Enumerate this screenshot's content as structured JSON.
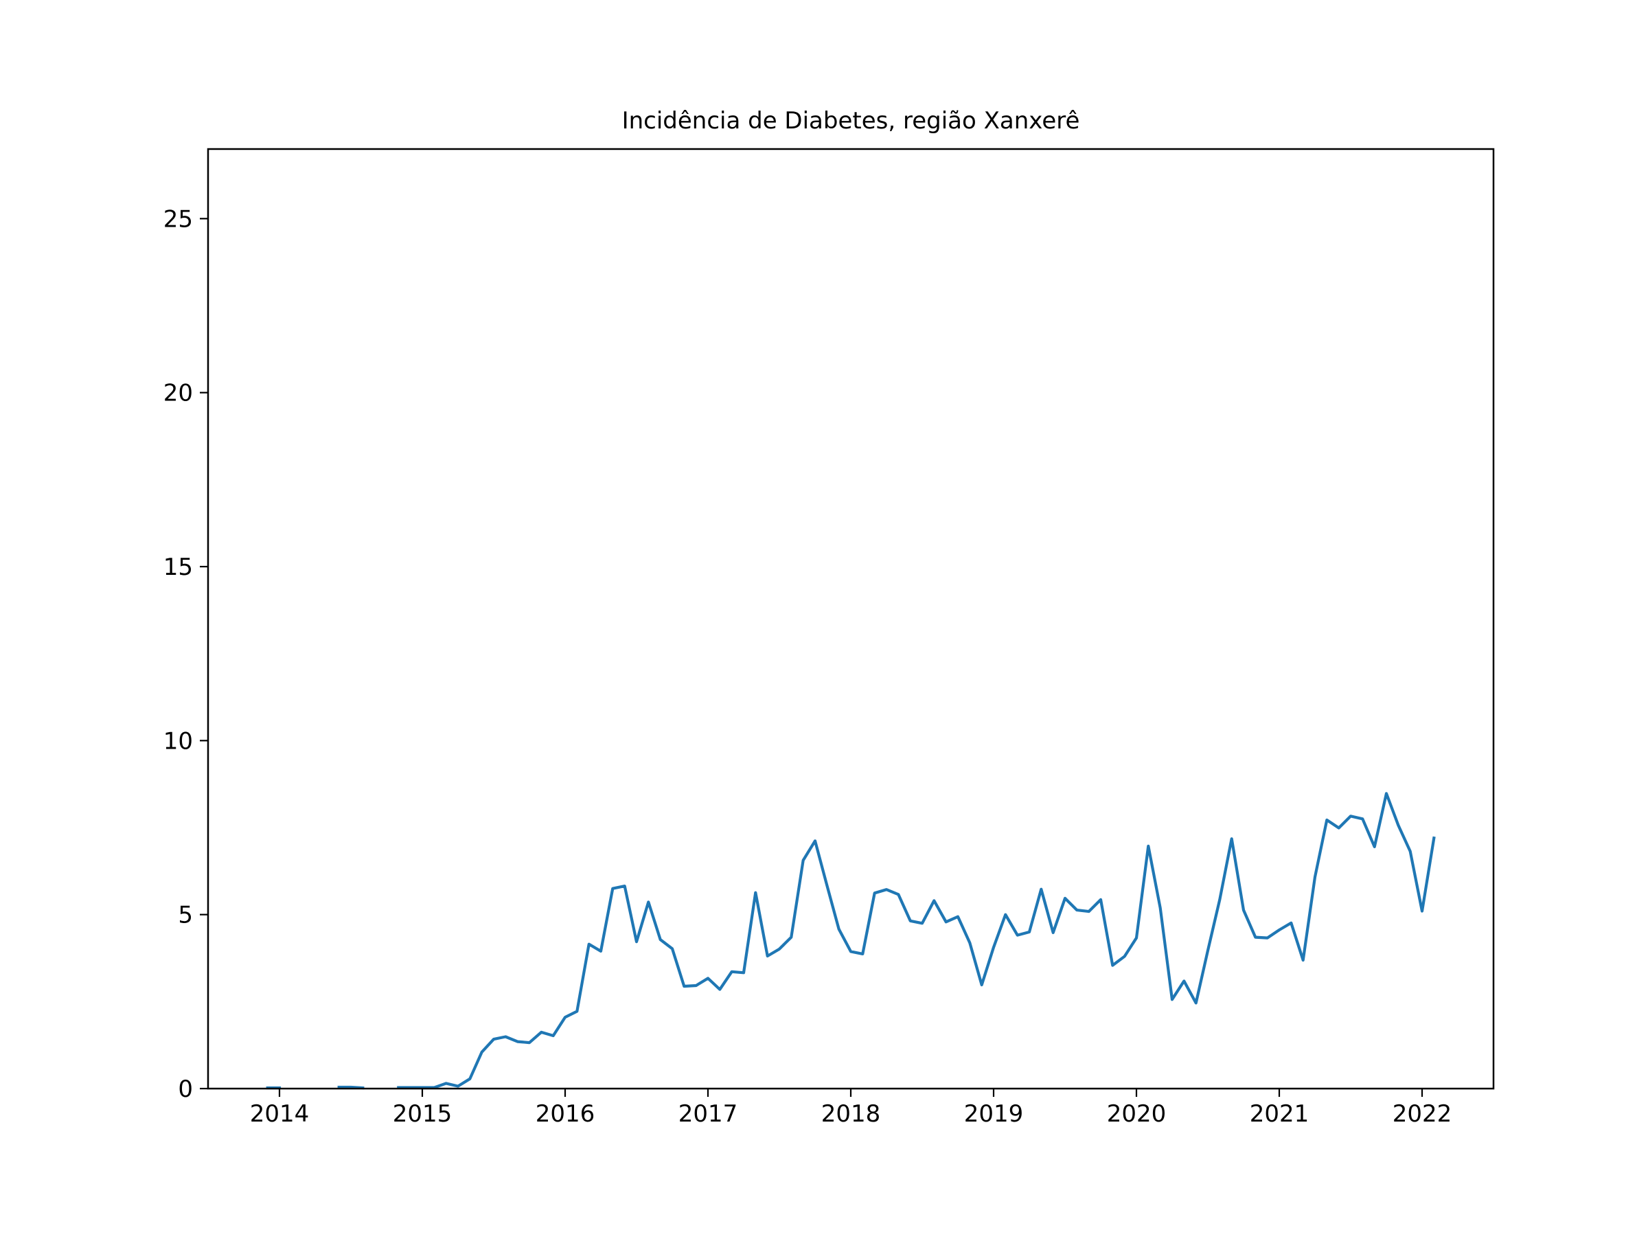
{
  "chart_data": {
    "type": "line",
    "title": "Incidência de Diabetes, região Xanxerê",
    "xlabel": "",
    "ylabel": "",
    "xlim": [
      2013.5,
      2022.5
    ],
    "ylim": [
      0,
      27
    ],
    "grid": false,
    "xticks": [
      2014,
      2015,
      2016,
      2017,
      2018,
      2019,
      2020,
      2021,
      2022
    ],
    "xtick_labels": [
      "2014",
      "2015",
      "2016",
      "2017",
      "2018",
      "2019",
      "2020",
      "2021",
      "2022"
    ],
    "yticks": [
      0,
      5,
      10,
      15,
      20,
      25
    ],
    "ytick_labels": [
      "0",
      "5",
      "10",
      "15",
      "20",
      "25"
    ],
    "series": [
      {
        "name": "Incidência",
        "color": "#1f77b4",
        "segments": [
          {
            "start": "2013-12",
            "values": [
              0.02,
              0.02
            ]
          },
          {
            "start": "2014-06",
            "values": [
              0.04,
              0.04,
              0.02
            ]
          },
          {
            "start": "2014-11",
            "values": [
              0.03,
              0.03,
              0.03,
              0.03,
              0.15,
              0.07,
              0.28,
              1.05,
              1.42,
              1.49,
              1.35,
              1.32,
              1.62,
              1.52,
              2.05,
              2.22,
              4.15,
              3.95,
              5.75,
              5.82,
              4.22,
              5.36,
              4.28,
              4.02,
              2.94,
              2.96,
              3.17,
              2.85,
              3.36,
              3.33,
              5.63,
              3.81,
              4.01,
              4.35,
              6.56,
              7.12,
              5.84,
              4.58,
              3.94,
              3.87,
              5.62,
              5.72,
              5.58,
              4.82,
              4.75,
              5.4,
              4.79,
              4.94,
              4.19,
              2.98,
              4.06,
              5.0,
              4.41,
              4.5,
              5.73,
              4.48,
              5.47,
              5.13,
              5.09,
              5.43,
              3.54,
              3.8,
              4.33,
              6.97,
              5.19,
              2.56,
              3.09,
              2.46,
              3.97,
              5.43,
              7.18,
              5.13,
              4.35,
              4.33,
              4.56,
              4.76,
              3.69,
              6.08,
              7.72,
              7.49,
              7.83,
              7.75,
              6.95,
              8.48,
              7.57,
              6.82,
              5.1,
              7.2
            ]
          }
        ]
      }
    ]
  }
}
